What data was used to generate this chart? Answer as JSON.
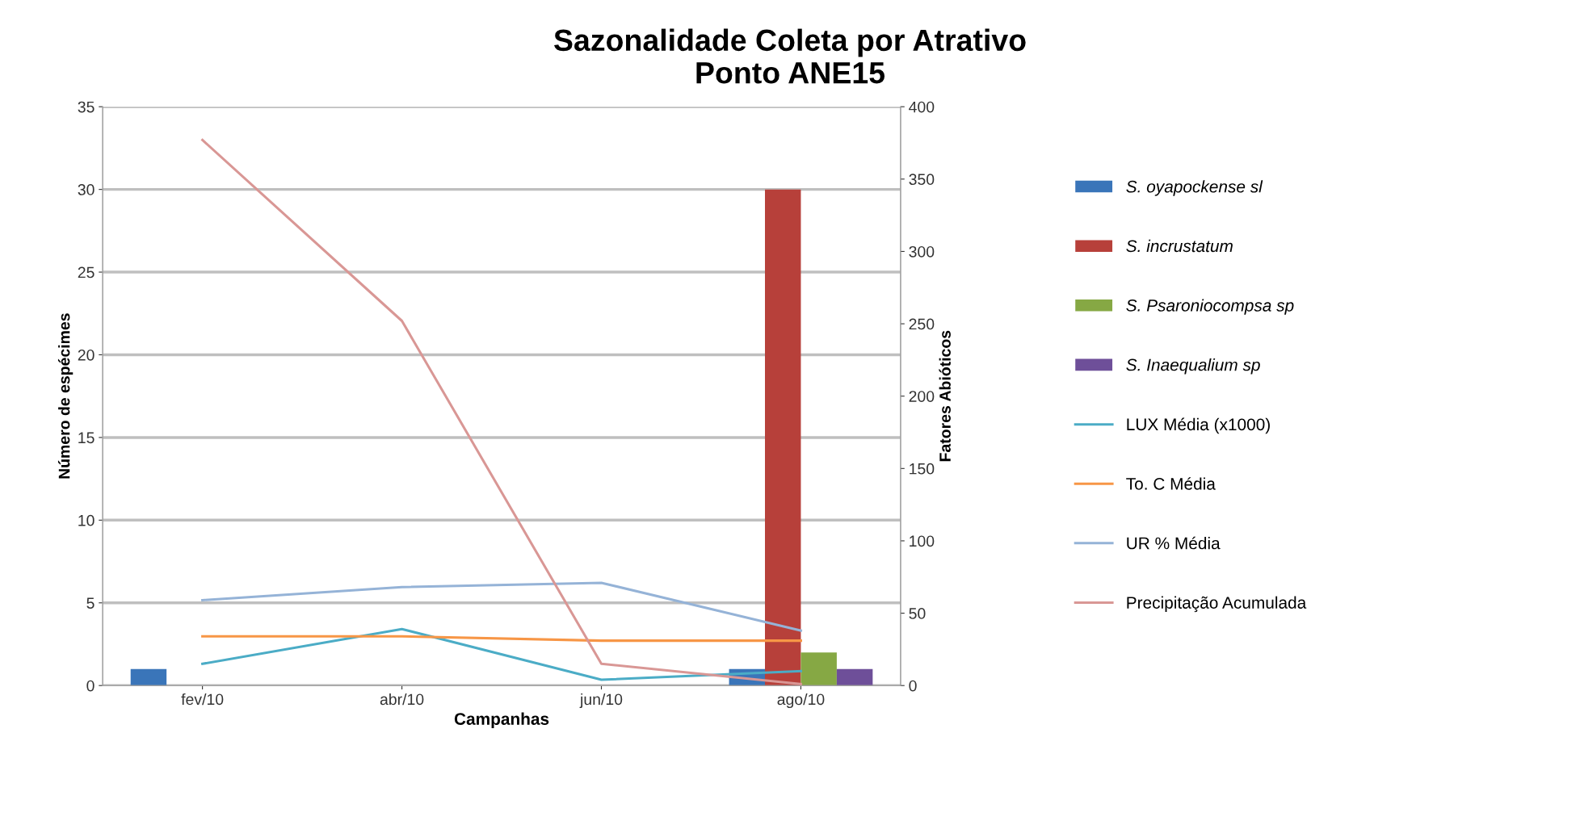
{
  "chart_data": {
    "type": "bar",
    "title": "Sazonalidade Coleta por Atrativo\nPonto ANE15",
    "xlabel": "Campanhas",
    "ylabel": "Número de espécimes",
    "y2label": "Fatores Abióticos",
    "categories": [
      "fev/10",
      "abr/10",
      "jun/10",
      "ago/10"
    ],
    "series": [
      {
        "name": "S. oyapockense sl",
        "color": "#3a75b9",
        "values": [
          1,
          0,
          0,
          1
        ]
      },
      {
        "name": "S. incrustatum",
        "color": "#b7403a",
        "values": [
          0,
          0,
          0,
          30
        ]
      },
      {
        "name": "S. Psaroniocompsa sp",
        "color": "#86a844",
        "values": [
          0,
          0,
          0,
          2
        ]
      },
      {
        "name": "S. Inaequalium sp",
        "color": "#6e4f99",
        "values": [
          0,
          0,
          0,
          1
        ]
      },
      {
        "name": "LUX Média (x1000)",
        "type": "line",
        "axis": "y2",
        "color": "#4bacc6",
        "values": [
          15,
          39,
          4,
          10
        ]
      },
      {
        "name": "To. C Média",
        "type": "line",
        "axis": "y2",
        "color": "#f79646",
        "values": [
          34,
          34,
          31,
          31
        ]
      },
      {
        "name": "UR % Média",
        "type": "line",
        "axis": "y2",
        "color": "#95b3d7",
        "values": [
          59,
          68,
          71,
          38
        ]
      },
      {
        "name": "Precipitação Acumulada",
        "type": "line",
        "axis": "y2",
        "color": "#d99795",
        "values": [
          377,
          252,
          15,
          1
        ]
      }
    ],
    "ylim": [
      0,
      35
    ],
    "yticks": [
      0,
      5,
      10,
      15,
      20,
      25,
      30,
      35
    ],
    "y2lim": [
      0,
      400
    ],
    "y2ticks": [
      0,
      50,
      100,
      150,
      200,
      250,
      300,
      350,
      400
    ],
    "grid": "y",
    "legend": "right"
  }
}
